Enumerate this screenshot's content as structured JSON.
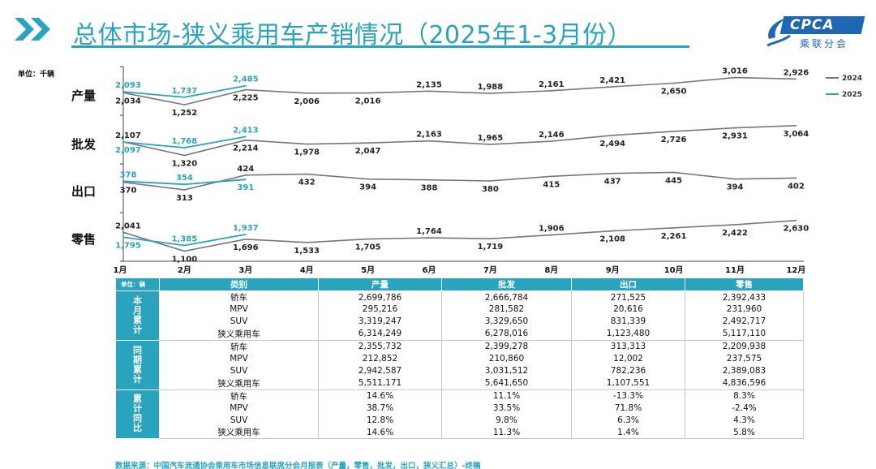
{
  "header": {
    "title": "总体市场-狭义乘用车产销情况（2025年1-3月份）",
    "logo_text": "CPCA",
    "logo_cn": "乘联分会"
  },
  "unit_label": "单位：千辆",
  "legend": [
    "2024",
    "2025"
  ],
  "colors": {
    "accent": "#2aa3bf",
    "line2024": "#777777",
    "line2025": "#2aa3bf",
    "logo": "#1f67b1"
  },
  "chart_data": {
    "type": "line",
    "categories": [
      "1月",
      "2月",
      "3月",
      "4月",
      "5月",
      "6月",
      "7月",
      "8月",
      "9月",
      "10月",
      "11月",
      "12月"
    ],
    "panels": [
      {
        "name": "产量",
        "series": [
          {
            "name": "2024",
            "values": [
              2034,
              1252,
              2225,
              2006,
              2016,
              2135,
              1988,
              2161,
              2421,
              2650,
              3016,
              2926
            ]
          },
          {
            "name": "2025",
            "values": [
              2093,
              1737,
              2485
            ]
          }
        ]
      },
      {
        "name": "批发",
        "series": [
          {
            "name": "2024",
            "values": [
              2107,
              1320,
              2214,
              1978,
              2047,
              2163,
              1965,
              2146,
              2494,
              2726,
              2931,
              3064
            ]
          },
          {
            "name": "2025",
            "values": [
              2097,
              1768,
              2413
            ]
          }
        ]
      },
      {
        "name": "出口",
        "series": [
          {
            "name": "2024",
            "values": [
              370,
              313,
              424,
              432,
              394,
              388,
              380,
              415,
              437,
              445,
              394,
              402
            ]
          },
          {
            "name": "2025",
            "values": [
              378,
              354,
              391
            ]
          }
        ]
      },
      {
        "name": "零售",
        "series": [
          {
            "name": "2024",
            "values": [
              2041,
              1100,
              1696,
              1533,
              1705,
              1764,
              1719,
              1906,
              2108,
              2261,
              2422,
              2630
            ]
          },
          {
            "name": "2025",
            "values": [
              1795,
              1385,
              1937
            ]
          }
        ]
      }
    ]
  },
  "table": {
    "unit": "单位：辆",
    "headers": [
      "类别",
      "产量",
      "批发",
      "出口",
      "零售"
    ],
    "groups": [
      {
        "label": "本月累计",
        "rows": [
          [
            "轿车",
            "2,699,786",
            "2,666,784",
            "271,525",
            "2,392,433"
          ],
          [
            "MPV",
            "295,216",
            "281,582",
            "20,616",
            "231,960"
          ],
          [
            "SUV",
            "3,319,247",
            "3,329,650",
            "831,339",
            "2,492,717"
          ],
          [
            "狭义乘用车",
            "6,314,249",
            "6,278,016",
            "1,123,480",
            "5,117,110"
          ]
        ]
      },
      {
        "label": "同期累计",
        "rows": [
          [
            "轿车",
            "2,355,732",
            "2,399,278",
            "313,313",
            "2,209,938"
          ],
          [
            "MPV",
            "212,852",
            "210,860",
            "12,002",
            "237,575"
          ],
          [
            "SUV",
            "2,942,587",
            "3,031,512",
            "782,236",
            "2,389,083"
          ],
          [
            "狭义乘用车",
            "5,511,171",
            "5,641,650",
            "1,107,551",
            "4,836,596"
          ]
        ]
      },
      {
        "label": "累计同比",
        "rows": [
          [
            "轿车",
            "14.6%",
            "11.1%",
            "-13.3%",
            "8.3%"
          ],
          [
            "MPV",
            "38.7%",
            "33.5%",
            "71.8%",
            "-2.4%"
          ],
          [
            "SUV",
            "12.8%",
            "9.8%",
            "6.3%",
            "4.3%"
          ],
          [
            "狭义乘用车",
            "14.6%",
            "11.3%",
            "1.4%",
            "5.8%"
          ]
        ]
      }
    ]
  },
  "source": "数据来源：中国汽车流通协会乘用车市场信息联席分会月报表（产量，零售，批发，出口，狭义汇总）-终稿"
}
